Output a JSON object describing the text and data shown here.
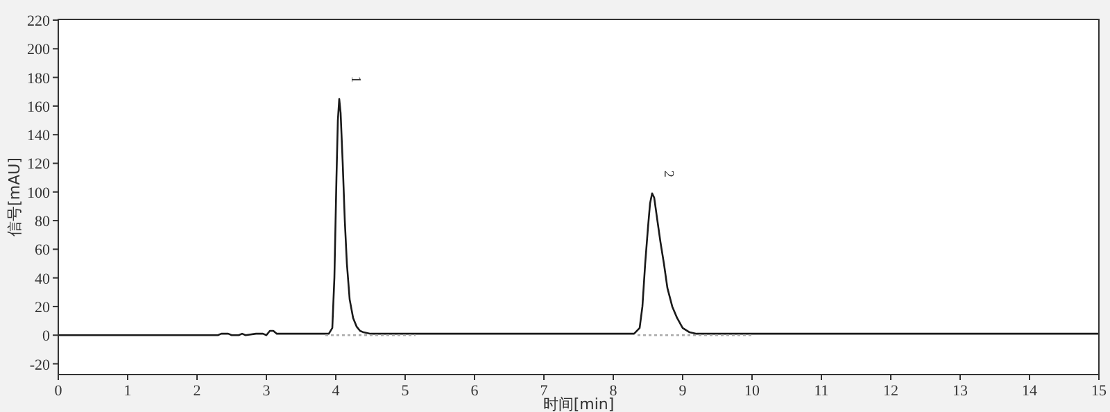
{
  "chart_data": {
    "type": "line",
    "xlabel": "时间[min]",
    "ylabel": "信号[mAU]",
    "xlim": [
      0,
      15
    ],
    "ylim": [
      -27.5,
      220.5
    ],
    "xticks": [
      0,
      1,
      2,
      3,
      4,
      5,
      6,
      7,
      8,
      9,
      10,
      11,
      12,
      13,
      14,
      15
    ],
    "yticks": [
      -20,
      0,
      20,
      40,
      60,
      80,
      100,
      120,
      140,
      160,
      180,
      200,
      220
    ],
    "grid": false,
    "marker": "none",
    "series": [
      {
        "color": "#1a1a1a",
        "line_style": "solid",
        "x": [
          0,
          2.3,
          2.35,
          2.45,
          2.5,
          2.6,
          2.65,
          2.7,
          2.85,
          2.95,
          3.0,
          3.05,
          3.1,
          3.15,
          3.3,
          3.9,
          3.95,
          3.98,
          4.01,
          4.03,
          4.05,
          4.07,
          4.1,
          4.13,
          4.16,
          4.2,
          4.25,
          4.3,
          4.35,
          4.4,
          4.5,
          5,
          8.3,
          8.38,
          8.42,
          8.46,
          8.5,
          8.53,
          8.56,
          8.59,
          8.63,
          8.68,
          8.73,
          8.78,
          8.85,
          8.92,
          9.0,
          9.1,
          9.2,
          10,
          14.8,
          15
        ],
        "values": [
          0,
          0,
          1,
          1,
          0,
          0,
          1,
          0,
          1,
          1,
          0,
          3,
          3,
          1,
          1,
          1,
          5,
          40,
          110,
          150,
          165,
          155,
          120,
          80,
          50,
          25,
          12,
          6,
          3,
          2,
          1,
          1,
          1,
          5,
          20,
          50,
          75,
          92,
          99,
          96,
          82,
          65,
          50,
          33,
          20,
          12,
          5,
          2,
          1,
          1,
          1,
          1
        ]
      },
      {
        "color": "#aaaaaa",
        "line_style": "dotted",
        "x": [
          3.85,
          5.15
        ],
        "values": [
          0,
          0
        ]
      },
      {
        "color": "#aaaaaa",
        "line_style": "dotted",
        "x": [
          8.35,
          10
        ],
        "values": [
          0,
          0
        ]
      }
    ],
    "annotations": [
      {
        "text": "1",
        "x": 4.05,
        "y": 165
      },
      {
        "text": "2",
        "x": 8.56,
        "y": 99
      }
    ]
  }
}
